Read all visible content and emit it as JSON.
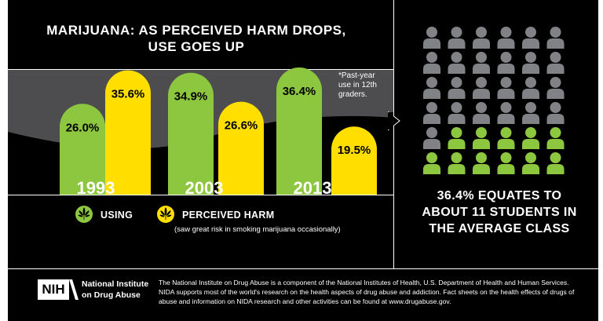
{
  "colors": {
    "background": "#000000",
    "using": "#8dc63f",
    "perceived_harm": "#ffde00",
    "highlight_person": "#8dc63f",
    "default_person": "#808285",
    "band": "#4d4d4f",
    "text": "#ffffff"
  },
  "chart_data": {
    "type": "bar",
    "title": "MARIJUANA: AS PERCEIVED HARM DROPS, USE GOES UP",
    "categories": [
      "1993",
      "2003",
      "2013"
    ],
    "series": [
      {
        "name": "USING",
        "values": [
          26.0,
          34.9,
          36.4
        ],
        "labels": [
          "26.0%",
          "34.9%",
          "36.4%"
        ]
      },
      {
        "name": "PERCEIVED HARM",
        "values": [
          35.6,
          26.6,
          19.5
        ],
        "labels": [
          "35.6%",
          "26.6%",
          "19.5%"
        ]
      }
    ],
    "legend_position": "bottom-left",
    "grid": false
  },
  "header": {
    "title": "MARIJUANA: AS PERCEIVED HARM DROPS, USE GOES UP"
  },
  "note": "*Past-year use in 12th graders.",
  "legend": {
    "using_label": "USING",
    "harm_label": "PERCEIVED HARM",
    "harm_sub": "(saw great risk in smoking marijuana occasionally)",
    "icon": "marijuana-leaf-icon"
  },
  "people_grid": {
    "rows": 6,
    "cols": 6,
    "highlighted": 11,
    "icon": "person-icon"
  },
  "stat": {
    "line1": "36.4% EQUATES TO",
    "line2": "ABOUT 11 STUDENTS IN",
    "line3": "THE AVERAGE CLASS"
  },
  "footer": {
    "logo": "NIH",
    "org_line1": "National Institute",
    "org_line2": "on Drug Abuse",
    "text": "The National Institute on Drug Abuse is a component of the National Institutes of Health, U.S. Department of Health and Human Services. NIDA supports most of the world's research on the health aspects of drug abuse and addiction. Fact sheets on the health effects of drugs of abuse and information on NIDA research and other activities can be found at www.drugabuse.gov."
  }
}
